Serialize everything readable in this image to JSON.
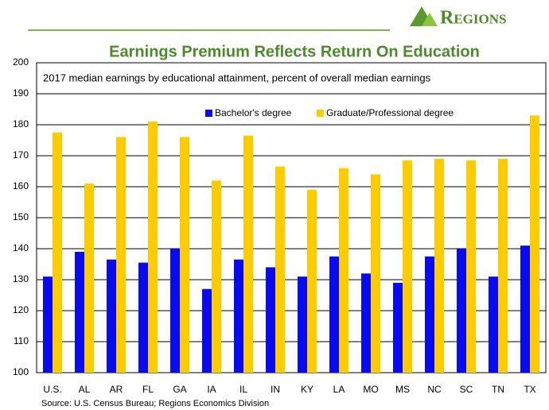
{
  "logo": "Regions",
  "chart_data": {
    "type": "bar",
    "title": "Earnings Premium Reflects Return On Education",
    "subtitle": "2017 median earnings by educational attainment, percent of overall median earnings",
    "source": "Source: U.S. Census Bureau; Regions Economics Division",
    "categories": [
      "U.S.",
      "AL",
      "AR",
      "FL",
      "GA",
      "IA",
      "IL",
      "IN",
      "KY",
      "LA",
      "MO",
      "MS",
      "NC",
      "SC",
      "TN",
      "TX"
    ],
    "series": [
      {
        "name": "Bachelor's degree",
        "color": "#0a0af0",
        "values": [
          131,
          139,
          136.5,
          135.5,
          140,
          127,
          136.5,
          134,
          131,
          137.5,
          132,
          129,
          137.5,
          140,
          131,
          141
        ]
      },
      {
        "name": "Graduate/Professional degree",
        "color": "#ffcc00",
        "values": [
          177.5,
          161,
          176,
          181,
          176,
          162,
          176.5,
          166.5,
          159,
          166,
          164,
          168.5,
          169,
          168.5,
          169,
          183
        ]
      }
    ],
    "ylim": [
      100,
      200
    ],
    "yticks": [
      100,
      110,
      120,
      130,
      140,
      150,
      160,
      170,
      180,
      190,
      200
    ],
    "grid": true
  }
}
